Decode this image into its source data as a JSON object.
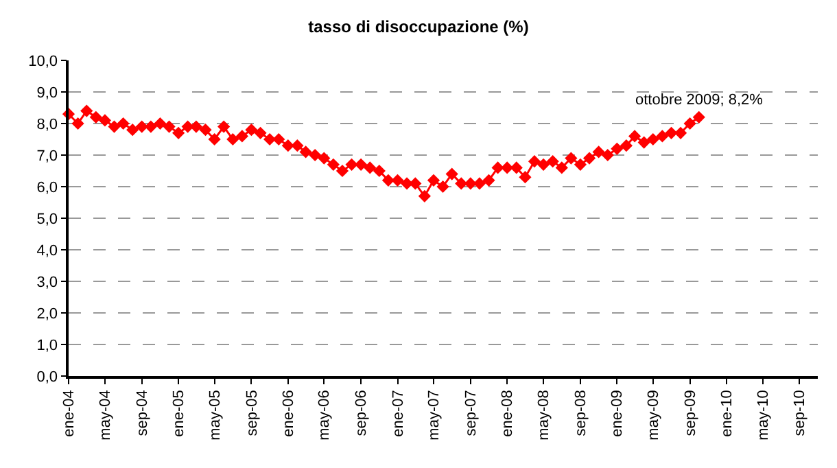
{
  "chart_data": {
    "type": "line",
    "title": "tasso di disoccupazione (%)",
    "x": [
      "2004-01",
      "2004-02",
      "2004-03",
      "2004-04",
      "2004-05",
      "2004-06",
      "2004-07",
      "2004-08",
      "2004-09",
      "2004-10",
      "2004-11",
      "2004-12",
      "2005-01",
      "2005-02",
      "2005-03",
      "2005-04",
      "2005-05",
      "2005-06",
      "2005-07",
      "2005-08",
      "2005-09",
      "2005-10",
      "2005-11",
      "2005-12",
      "2006-01",
      "2006-02",
      "2006-03",
      "2006-04",
      "2006-05",
      "2006-06",
      "2006-07",
      "2006-08",
      "2006-09",
      "2006-10",
      "2006-11",
      "2006-12",
      "2007-01",
      "2007-02",
      "2007-03",
      "2007-04",
      "2007-05",
      "2007-06",
      "2007-07",
      "2007-08",
      "2007-09",
      "2007-10",
      "2007-11",
      "2007-12",
      "2008-01",
      "2008-02",
      "2008-03",
      "2008-04",
      "2008-05",
      "2008-06",
      "2008-07",
      "2008-08",
      "2008-09",
      "2008-10",
      "2008-11",
      "2008-12",
      "2009-01",
      "2009-02",
      "2009-03",
      "2009-04",
      "2009-05",
      "2009-06",
      "2009-07",
      "2009-08",
      "2009-09",
      "2009-10"
    ],
    "series": [
      {
        "color": "#ff0000",
        "values": [
          8.3,
          8.0,
          8.4,
          8.2,
          8.1,
          7.9,
          8.0,
          7.8,
          7.9,
          7.9,
          8.0,
          7.9,
          7.7,
          7.9,
          7.9,
          7.8,
          7.5,
          7.9,
          7.5,
          7.6,
          7.8,
          7.7,
          7.5,
          7.5,
          7.3,
          7.3,
          7.1,
          7.0,
          6.9,
          6.7,
          6.5,
          6.7,
          6.7,
          6.6,
          6.5,
          6.2,
          6.2,
          6.1,
          6.1,
          5.7,
          6.2,
          6.0,
          6.4,
          6.1,
          6.1,
          6.1,
          6.2,
          6.6,
          6.6,
          6.6,
          6.3,
          6.8,
          6.7,
          6.8,
          6.6,
          6.9,
          6.7,
          6.9,
          7.1,
          7.0,
          7.2,
          7.3,
          7.6,
          7.4,
          7.5,
          7.6,
          7.7,
          7.7,
          8.0,
          8.2
        ],
        "line_style": "solid"
      }
    ],
    "annotations": [
      {
        "text": "ottobre 2009; 8,2%",
        "x": "2009-10",
        "y": 8.2
      }
    ],
    "xlim": [
      "2004-01",
      "2010-11"
    ],
    "xticks": [
      {
        "value": "2004-01",
        "label": "ene-04"
      },
      {
        "value": "2004-05",
        "label": "may-04"
      },
      {
        "value": "2004-09",
        "label": "sep-04"
      },
      {
        "value": "2005-01",
        "label": "ene-05"
      },
      {
        "value": "2005-05",
        "label": "may-05"
      },
      {
        "value": "2005-09",
        "label": "sep-05"
      },
      {
        "value": "2006-01",
        "label": "ene-06"
      },
      {
        "value": "2006-05",
        "label": "may-06"
      },
      {
        "value": "2006-09",
        "label": "sep-06"
      },
      {
        "value": "2007-01",
        "label": "ene-07"
      },
      {
        "value": "2007-05",
        "label": "may-07"
      },
      {
        "value": "2007-09",
        "label": "sep-07"
      },
      {
        "value": "2008-01",
        "label": "ene-08"
      },
      {
        "value": "2008-05",
        "label": "may-08"
      },
      {
        "value": "2008-09",
        "label": "sep-08"
      },
      {
        "value": "2009-01",
        "label": "ene-09"
      },
      {
        "value": "2009-05",
        "label": "may-09"
      },
      {
        "value": "2009-09",
        "label": "sep-09"
      },
      {
        "value": "2010-01",
        "label": "ene-10"
      },
      {
        "value": "2010-05",
        "label": "may-10"
      },
      {
        "value": "2010-09",
        "label": "sep-10"
      }
    ],
    "ylim": [
      0,
      10
    ],
    "yticks": [
      {
        "value": 0,
        "label": "0,0"
      },
      {
        "value": 1,
        "label": "1,0"
      },
      {
        "value": 2,
        "label": "2,0"
      },
      {
        "value": 3,
        "label": "3,0"
      },
      {
        "value": 4,
        "label": "4,0"
      },
      {
        "value": 5,
        "label": "5,0"
      },
      {
        "value": 6,
        "label": "6,0"
      },
      {
        "value": 7,
        "label": "7,0"
      },
      {
        "value": 8,
        "label": "8,0"
      },
      {
        "value": 9,
        "label": "9,0"
      },
      {
        "value": 10,
        "label": "10,0"
      }
    ],
    "grid": "y",
    "marker": "diamond"
  }
}
